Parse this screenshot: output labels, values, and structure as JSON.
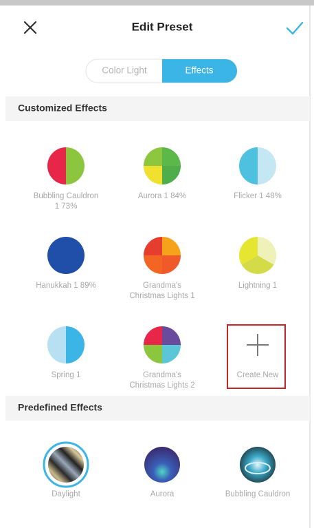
{
  "header": {
    "title": "Edit Preset"
  },
  "tabs": [
    "Color Light",
    "Effects"
  ],
  "customized": {
    "title": "Customized Effects",
    "items": [
      {
        "label": [
          "Bubbling Cauldron",
          "1 73%"
        ]
      },
      {
        "label": [
          "Aurora 1 84%"
        ]
      },
      {
        "label": [
          "Flicker 1 48%"
        ]
      },
      {
        "label": [
          "Hanukkah 1 89%"
        ]
      },
      {
        "label": [
          "Grandma's",
          "Christmas Lights 1"
        ]
      },
      {
        "label": [
          "Lightning 1"
        ]
      },
      {
        "label": [
          "Spring 1"
        ]
      },
      {
        "label": [
          "Grandma's",
          "Christmas Lights 2"
        ]
      },
      {
        "label": [
          "Create New"
        ]
      }
    ]
  },
  "predefined": {
    "title": "Predefined Effects",
    "items": [
      {
        "label": [
          "Daylight"
        ]
      },
      {
        "label": [
          "Aurora"
        ]
      },
      {
        "label": [
          "Bubbling Cauldron"
        ]
      }
    ]
  }
}
